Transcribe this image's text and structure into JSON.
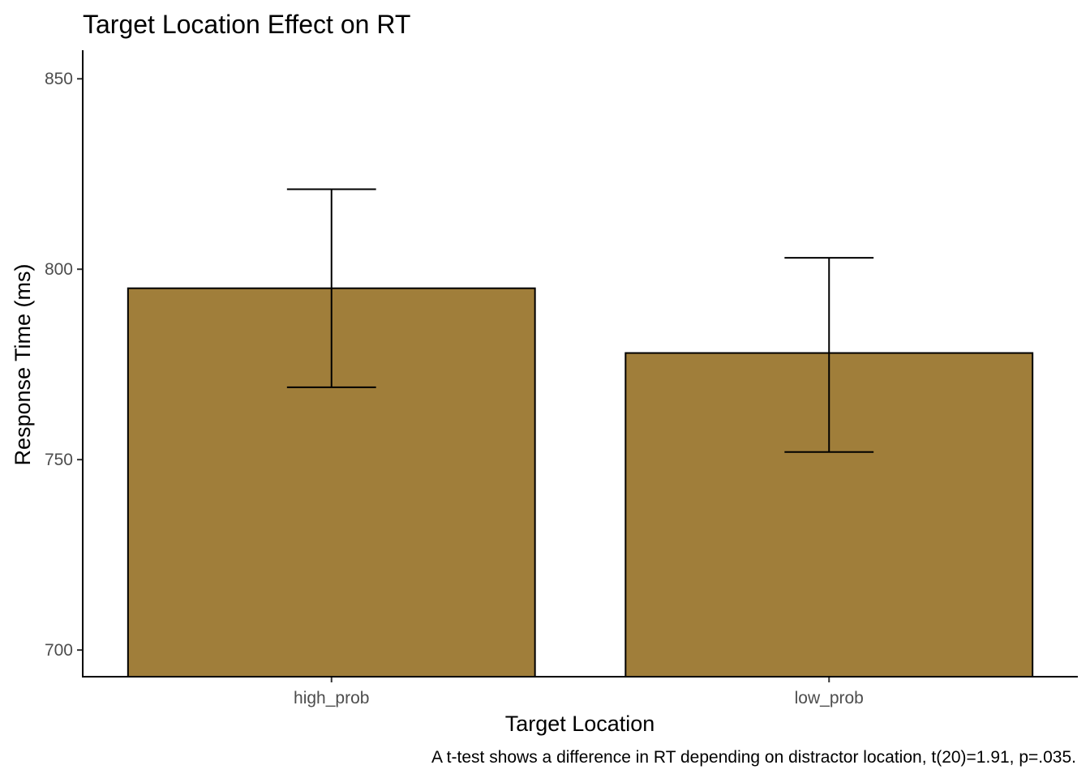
{
  "chart_data": {
    "type": "bar",
    "title": "Target Location Effect on RT",
    "xlabel": "Target Location",
    "ylabel": "Response Time (ms)",
    "caption": "A t-test shows a difference in RT depending on distractor location, t(20)=1.91, p=.035.",
    "categories": [
      "high_prob",
      "low_prob"
    ],
    "values": [
      795,
      778
    ],
    "error_bars": [
      {
        "low": 769,
        "high": 821
      },
      {
        "low": 752,
        "high": 803
      }
    ],
    "ylim": [
      693,
      857.5
    ],
    "yticks": [
      700,
      750,
      800,
      850
    ],
    "ytick_labels": [
      "700",
      "750",
      "800",
      "850"
    ],
    "bar_color": "#a07e3a",
    "grid": false,
    "legend": "none"
  }
}
